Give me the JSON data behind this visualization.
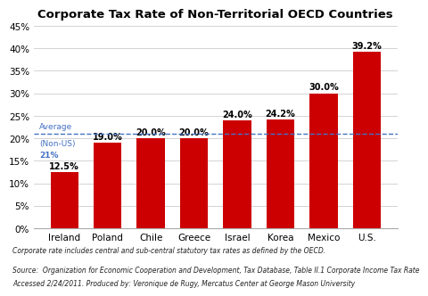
{
  "title": "Corporate Tax Rate of Non-Territorial OECD Countries",
  "categories": [
    "Ireland",
    "Poland",
    "Chile",
    "Greece",
    "Israel",
    "Korea",
    "Mexico",
    "U.S."
  ],
  "values": [
    12.5,
    19.0,
    20.0,
    20.0,
    24.0,
    24.2,
    30.0,
    39.2
  ],
  "labels": [
    "12.5%",
    "19.0%",
    "20.0%",
    "20.0%",
    "24.0%",
    "24.2%",
    "30.0%",
    "39.2%"
  ],
  "bar_color": "#cc0000",
  "avg_line_y": 21.0,
  "avg_label_line1": "Average",
  "avg_label_line2": "(Non-US)",
  "avg_label_line3": "21%",
  "avg_color": "#4472c4",
  "ylim": [
    0,
    45
  ],
  "yticks": [
    0,
    5,
    10,
    15,
    20,
    25,
    30,
    35,
    40,
    45
  ],
  "ytick_labels": [
    "0%",
    "5%",
    "10%",
    "15%",
    "20%",
    "25%",
    "30%",
    "35%",
    "40%",
    "45%"
  ],
  "footnote1": "Corporate rate includes central and sub-central statutory tax rates as defined by the OECD.",
  "footnote2": "Source:  Organization for Economic Cooperation and Development, Tax Database, Table II.1 Corporate Income Tax Rate",
  "footnote3": "Accessed 2/24/2011. Produced by: Veronique de Rugy, Mercatus Center at George Mason University",
  "background_color": "#ffffff",
  "grid_color": "#cccccc",
  "title_fontsize": 9.5,
  "bar_label_fontsize": 7,
  "tick_fontsize": 7.5,
  "footnote_fontsize": 5.5,
  "avg_label_fontsize": 6.5
}
